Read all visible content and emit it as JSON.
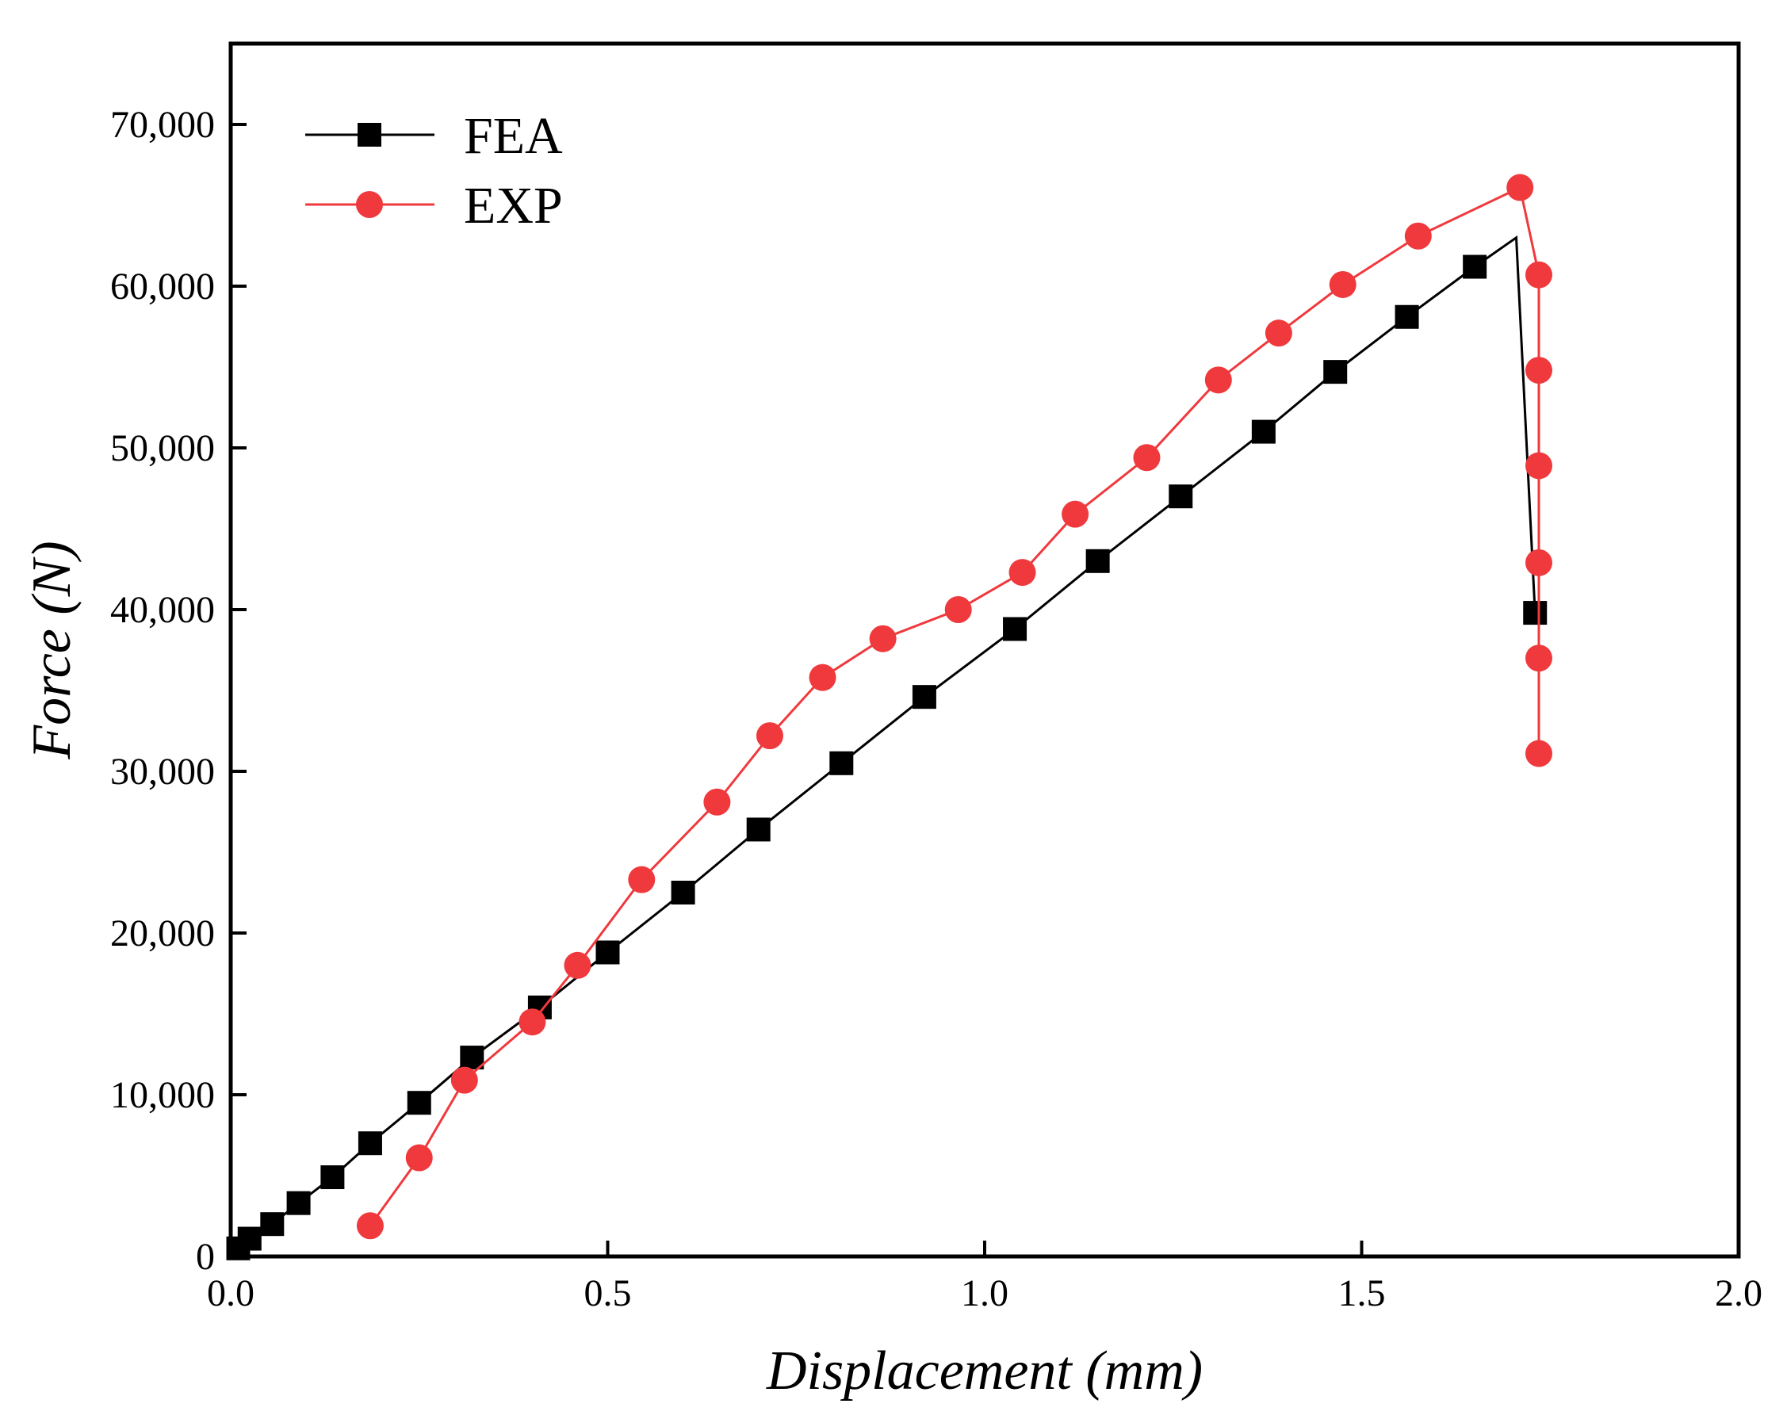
{
  "chart_data": {
    "type": "line",
    "title": "",
    "xlabel": "Displacement (mm)",
    "ylabel": "Force (N)",
    "xlim": [
      0.0,
      2.0
    ],
    "ylim": [
      0,
      75000
    ],
    "xticks": [
      {
        "value": 0.0,
        "label": "0.0"
      },
      {
        "value": 0.5,
        "label": "0.5"
      },
      {
        "value": 1.0,
        "label": "1.0"
      },
      {
        "value": 1.5,
        "label": "1.5"
      },
      {
        "value": 2.0,
        "label": "2.0"
      }
    ],
    "yticks": [
      {
        "value": 0,
        "label": "0"
      },
      {
        "value": 10000,
        "label": "10,000"
      },
      {
        "value": 20000,
        "label": "20,000"
      },
      {
        "value": 30000,
        "label": "30,000"
      },
      {
        "value": 40000,
        "label": "40,000"
      },
      {
        "value": 50000,
        "label": "50,000"
      },
      {
        "value": 60000,
        "label": "60,000"
      },
      {
        "value": 70000,
        "label": "70,000"
      }
    ],
    "grid": false,
    "legend_position": "top-left",
    "series": [
      {
        "name": "FEA",
        "color": "#000000",
        "marker": "square",
        "line_points": [
          [
            0.0,
            0
          ],
          [
            0.01,
            500
          ],
          [
            0.025,
            1100
          ],
          [
            0.055,
            2000
          ],
          [
            0.09,
            3300
          ],
          [
            0.135,
            4900
          ],
          [
            0.185,
            7000
          ],
          [
            0.25,
            9500
          ],
          [
            0.32,
            12300
          ],
          [
            0.41,
            15400
          ],
          [
            0.5,
            18800
          ],
          [
            0.6,
            22500
          ],
          [
            0.7,
            26400
          ],
          [
            0.81,
            30500
          ],
          [
            0.92,
            34600
          ],
          [
            1.04,
            38800
          ],
          [
            1.15,
            43000
          ],
          [
            1.26,
            47000
          ],
          [
            1.37,
            51000
          ],
          [
            1.465,
            54700
          ],
          [
            1.56,
            58100
          ],
          [
            1.65,
            61200
          ],
          [
            1.705,
            63000
          ],
          [
            1.73,
            39800
          ]
        ],
        "marker_points": [
          [
            0.01,
            500
          ],
          [
            0.025,
            1100
          ],
          [
            0.055,
            2000
          ],
          [
            0.09,
            3300
          ],
          [
            0.135,
            4900
          ],
          [
            0.185,
            7000
          ],
          [
            0.25,
            9500
          ],
          [
            0.32,
            12300
          ],
          [
            0.41,
            15400
          ],
          [
            0.5,
            18800
          ],
          [
            0.6,
            22500
          ],
          [
            0.7,
            26400
          ],
          [
            0.81,
            30500
          ],
          [
            0.92,
            34600
          ],
          [
            1.04,
            38800
          ],
          [
            1.15,
            43000
          ],
          [
            1.26,
            47000
          ],
          [
            1.37,
            51000
          ],
          [
            1.465,
            54700
          ],
          [
            1.56,
            58100
          ],
          [
            1.65,
            61200
          ],
          [
            1.73,
            39800
          ]
        ]
      },
      {
        "name": "EXP",
        "color": "#f0393d",
        "marker": "circle",
        "line_points": [
          [
            0.185,
            1900
          ],
          [
            0.25,
            6100
          ],
          [
            0.31,
            10900
          ],
          [
            0.4,
            14500
          ],
          [
            0.46,
            18000
          ],
          [
            0.545,
            23300
          ],
          [
            0.645,
            28100
          ],
          [
            0.715,
            32200
          ],
          [
            0.785,
            35800
          ],
          [
            0.865,
            38200
          ],
          [
            0.965,
            40000
          ],
          [
            1.05,
            42300
          ],
          [
            1.12,
            45900
          ],
          [
            1.215,
            49400
          ],
          [
            1.31,
            54200
          ],
          [
            1.39,
            57100
          ],
          [
            1.475,
            60100
          ],
          [
            1.575,
            63100
          ],
          [
            1.71,
            66100
          ],
          [
            1.735,
            60700
          ],
          [
            1.735,
            54800
          ],
          [
            1.735,
            48900
          ],
          [
            1.735,
            42900
          ],
          [
            1.735,
            37000
          ],
          [
            1.735,
            31100
          ]
        ],
        "marker_points": [
          [
            0.185,
            1900
          ],
          [
            0.25,
            6100
          ],
          [
            0.31,
            10900
          ],
          [
            0.4,
            14500
          ],
          [
            0.46,
            18000
          ],
          [
            0.545,
            23300
          ],
          [
            0.645,
            28100
          ],
          [
            0.715,
            32200
          ],
          [
            0.785,
            35800
          ],
          [
            0.865,
            38200
          ],
          [
            0.965,
            40000
          ],
          [
            1.05,
            42300
          ],
          [
            1.12,
            45900
          ],
          [
            1.215,
            49400
          ],
          [
            1.31,
            54200
          ],
          [
            1.39,
            57100
          ],
          [
            1.475,
            60100
          ],
          [
            1.575,
            63100
          ],
          [
            1.71,
            66100
          ],
          [
            1.735,
            60700
          ],
          [
            1.735,
            54800
          ],
          [
            1.735,
            48900
          ],
          [
            1.735,
            42900
          ],
          [
            1.735,
            37000
          ],
          [
            1.735,
            31100
          ]
        ]
      }
    ]
  }
}
